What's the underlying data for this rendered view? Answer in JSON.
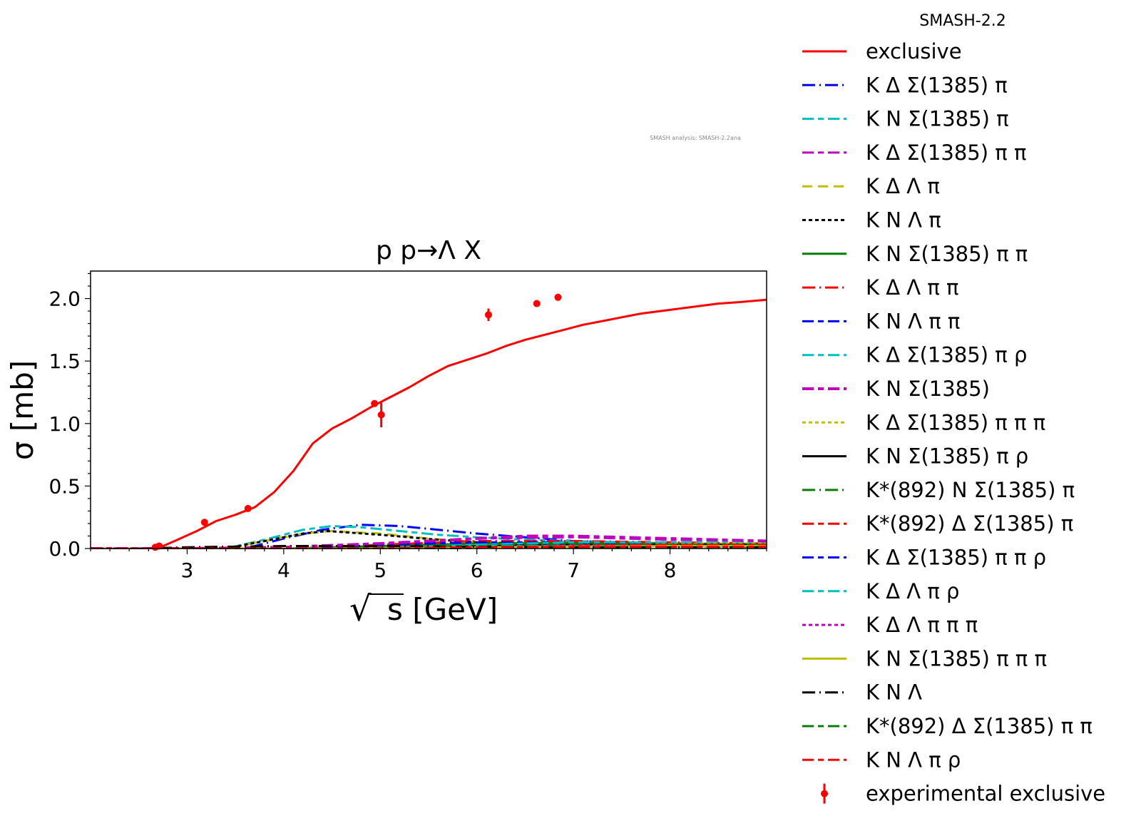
{
  "chart_data": {
    "type": "line",
    "title": "p p→Λ X",
    "xlabel": "s [GeV]",
    "xlabel_radical": "√",
    "ylabel": "σ [mb]",
    "xlim": [
      2.0,
      9.0
    ],
    "ylim": [
      0.0,
      2.22
    ],
    "xticks": [
      3,
      4,
      5,
      6,
      7,
      8
    ],
    "yticks": [
      0.0,
      0.5,
      1.0,
      1.5,
      2.0
    ],
    "ytick_labels": [
      "0.0",
      "0.5",
      "1.0",
      "1.5",
      "2.0"
    ],
    "grid": false,
    "legend_title": "SMASH-2.2",
    "legend_placement": "outside-right",
    "watermark": "SMASH analysis: SMASH-2.2ana",
    "series": [
      {
        "name": "exclusive",
        "color": "#ff0000",
        "style": "solid",
        "width": 3,
        "x": [
          2.0,
          2.6,
          2.75,
          2.9,
          3.1,
          3.3,
          3.5,
          3.7,
          3.9,
          4.1,
          4.3,
          4.5,
          4.7,
          4.9,
          5.1,
          5.3,
          5.5,
          5.7,
          5.9,
          6.1,
          6.3,
          6.5,
          6.7,
          6.9,
          7.1,
          7.3,
          7.5,
          7.7,
          7.9,
          8.1,
          8.3,
          8.5,
          8.7,
          9.0
        ],
        "y": [
          0.0,
          0.0,
          0.02,
          0.07,
          0.14,
          0.22,
          0.27,
          0.33,
          0.45,
          0.62,
          0.84,
          0.96,
          1.04,
          1.13,
          1.21,
          1.29,
          1.38,
          1.46,
          1.51,
          1.56,
          1.62,
          1.67,
          1.71,
          1.75,
          1.79,
          1.82,
          1.85,
          1.88,
          1.9,
          1.92,
          1.94,
          1.96,
          1.97,
          1.99
        ]
      },
      {
        "name": "K Δ Σ(1385) π",
        "color": "#0000ff",
        "style": "longdash-dot",
        "width": 3,
        "x": [
          2.0,
          3.6,
          4.0,
          4.4,
          4.8,
          5.2,
          5.6,
          6.0,
          6.5,
          7.0,
          8.0,
          9.0
        ],
        "y": [
          0.0,
          0.0,
          0.08,
          0.15,
          0.19,
          0.18,
          0.15,
          0.12,
          0.09,
          0.06,
          0.04,
          0.03
        ]
      },
      {
        "name": "K N Σ(1385) π",
        "color": "#00bfbf",
        "style": "longdash-dash",
        "width": 3,
        "x": [
          2.0,
          3.4,
          3.8,
          4.2,
          4.5,
          4.8,
          5.2,
          5.6,
          6.0,
          6.5,
          7.0,
          8.0,
          9.0
        ],
        "y": [
          0.0,
          0.0,
          0.07,
          0.15,
          0.18,
          0.17,
          0.14,
          0.11,
          0.09,
          0.07,
          0.06,
          0.04,
          0.03
        ]
      },
      {
        "name": "K Δ Σ(1385) π π",
        "color": "#bf00bf",
        "style": "longdash-dash",
        "width": 3,
        "x": [
          2.0,
          4.2,
          5.0,
          6.0,
          7.0,
          8.0,
          9.0
        ],
        "y": [
          0.0,
          0.0,
          0.04,
          0.08,
          0.09,
          0.07,
          0.06
        ]
      },
      {
        "name": "K Δ Λ π",
        "color": "#bfbf00",
        "style": "dash",
        "width": 3,
        "x": [
          2.0,
          3.4,
          3.8,
          4.2,
          4.5,
          5.0,
          5.5,
          6.0,
          7.0,
          8.0,
          9.0
        ],
        "y": [
          0.0,
          0.0,
          0.06,
          0.12,
          0.14,
          0.12,
          0.08,
          0.05,
          0.03,
          0.02,
          0.015
        ]
      },
      {
        "name": "K N Λ π",
        "color": "#000000",
        "style": "dotted",
        "width": 3,
        "x": [
          2.0,
          3.4,
          3.8,
          4.2,
          4.45,
          5.0,
          5.6,
          6.0,
          7.0,
          8.0,
          9.0
        ],
        "y": [
          0.0,
          0.0,
          0.06,
          0.12,
          0.14,
          0.11,
          0.07,
          0.05,
          0.03,
          0.02,
          0.015
        ]
      },
      {
        "name": "K N Σ(1385) π π",
        "color": "#008000",
        "style": "solid",
        "width": 3,
        "x": [
          2.0,
          4.0,
          5.0,
          6.0,
          7.0,
          8.0,
          9.0
        ],
        "y": [
          0.0,
          0.0,
          0.02,
          0.04,
          0.045,
          0.04,
          0.035
        ]
      },
      {
        "name": "K Δ Λ π π",
        "color": "#ff0000",
        "style": "longdash-dot",
        "width": 3,
        "x": [
          2.0,
          4.2,
          5.0,
          6.0,
          7.0,
          8.0,
          9.0
        ],
        "y": [
          0.0,
          0.0,
          0.03,
          0.06,
          0.06,
          0.05,
          0.04
        ]
      },
      {
        "name": "K N Λ π π",
        "color": "#0000ff",
        "style": "longdash-dash",
        "width": 3,
        "x": [
          2.0,
          4.0,
          5.0,
          6.0,
          7.0,
          8.0,
          9.0
        ],
        "y": [
          0.0,
          0.0,
          0.03,
          0.05,
          0.05,
          0.04,
          0.03
        ]
      },
      {
        "name": "K Δ Σ(1385) π ρ",
        "color": "#00bfbf",
        "style": "longdash-dash",
        "width": 3,
        "x": [
          2.0,
          5.0,
          6.0,
          7.0,
          8.0,
          9.0
        ],
        "y": [
          0.0,
          0.0,
          0.03,
          0.05,
          0.05,
          0.05
        ]
      },
      {
        "name": "K N Σ(1385)",
        "color": "#bf00bf",
        "style": "longdash-dash",
        "width": 4,
        "x": [
          2.0,
          3.0,
          4.0,
          5.0,
          6.0,
          6.5,
          7.0,
          8.0,
          9.0
        ],
        "y": [
          0.0,
          0.0,
          0.01,
          0.04,
          0.08,
          0.1,
          0.1,
          0.08,
          0.06
        ]
      },
      {
        "name": "K Δ Σ(1385) π π π",
        "color": "#bfbf00",
        "style": "dotted",
        "width": 3,
        "x": [
          2.0,
          5.5,
          6.5,
          7.5,
          8.5,
          9.0
        ],
        "y": [
          0.0,
          0.0,
          0.02,
          0.03,
          0.04,
          0.04
        ]
      },
      {
        "name": "K N Σ(1385) π ρ",
        "color": "#000000",
        "style": "solid",
        "width": 3,
        "x": [
          2.0,
          5.0,
          6.0,
          7.0,
          8.0,
          9.0
        ],
        "y": [
          0.0,
          0.0,
          0.02,
          0.03,
          0.03,
          0.03
        ]
      },
      {
        "name": "K*(892) N Σ(1385) π",
        "color": "#008000",
        "style": "longdash-dot",
        "width": 3,
        "x": [
          2.0,
          5.0,
          6.0,
          7.0,
          8.0,
          9.0
        ],
        "y": [
          0.0,
          0.0,
          0.02,
          0.03,
          0.03,
          0.03
        ]
      },
      {
        "name": "K*(892) Δ Σ(1385) π",
        "color": "#ff0000",
        "style": "longdash-dash",
        "width": 3,
        "x": [
          2.0,
          5.2,
          6.0,
          7.0,
          8.0,
          9.0
        ],
        "y": [
          0.0,
          0.0,
          0.015,
          0.025,
          0.03,
          0.03
        ]
      },
      {
        "name": "K Δ Σ(1385) π π ρ",
        "color": "#0000ff",
        "style": "longdash-dash",
        "width": 3,
        "x": [
          2.0,
          5.5,
          6.5,
          7.5,
          8.5,
          9.0
        ],
        "y": [
          0.0,
          0.0,
          0.01,
          0.02,
          0.02,
          0.02
        ]
      },
      {
        "name": "K Δ Λ π ρ",
        "color": "#00bfbf",
        "style": "longdash-dash",
        "width": 3,
        "x": [
          2.0,
          4.8,
          6.0,
          7.0,
          8.0,
          9.0
        ],
        "y": [
          0.0,
          0.0,
          0.02,
          0.02,
          0.02,
          0.02
        ]
      },
      {
        "name": "K Δ Λ π π π",
        "color": "#bf00bf",
        "style": "dotted",
        "width": 3,
        "x": [
          2.0,
          5.0,
          6.0,
          7.0,
          8.0,
          9.0
        ],
        "y": [
          0.0,
          0.0,
          0.01,
          0.02,
          0.02,
          0.02
        ]
      },
      {
        "name": "K N Σ(1385) π π π",
        "color": "#bfbf00",
        "style": "solid",
        "width": 3,
        "x": [
          2.0,
          5.0,
          6.0,
          7.0,
          8.0,
          9.0
        ],
        "y": [
          0.0,
          0.0,
          0.01,
          0.015,
          0.02,
          0.02
        ]
      },
      {
        "name": "K N Λ",
        "color": "#000000",
        "style": "longdash-dot",
        "width": 3,
        "x": [
          2.0,
          2.55,
          3.0,
          4.0,
          5.0,
          6.0,
          7.0,
          8.0,
          9.0
        ],
        "y": [
          0.0,
          0.0,
          0.01,
          0.02,
          0.02,
          0.015,
          0.01,
          0.01,
          0.01
        ]
      },
      {
        "name": "K*(892) Δ Σ(1385) π π",
        "color": "#008000",
        "style": "longdash-dash",
        "width": 3,
        "x": [
          2.0,
          5.5,
          6.5,
          7.5,
          8.5,
          9.0
        ],
        "y": [
          0.0,
          0.0,
          0.01,
          0.01,
          0.01,
          0.01
        ]
      },
      {
        "name": "K N Λ π ρ",
        "color": "#ff0000",
        "style": "longdash-dash",
        "width": 3,
        "x": [
          2.0,
          4.8,
          6.0,
          7.0,
          8.0,
          9.0
        ],
        "y": [
          0.0,
          0.0,
          0.01,
          0.015,
          0.015,
          0.015
        ]
      }
    ],
    "experimental": {
      "name": "experimental exclusive",
      "color": "#ff0000",
      "points": [
        {
          "x": 2.67,
          "y": 0.01,
          "err": 0.0
        },
        {
          "x": 2.71,
          "y": 0.02,
          "err": 0.0
        },
        {
          "x": 3.18,
          "y": 0.21,
          "err": 0.0
        },
        {
          "x": 3.63,
          "y": 0.32,
          "err": 0.0
        },
        {
          "x": 4.94,
          "y": 1.16,
          "err": 0.0
        },
        {
          "x": 5.01,
          "y": 1.07,
          "err": 0.1
        },
        {
          "x": 6.12,
          "y": 1.87,
          "err": 0.05
        },
        {
          "x": 6.62,
          "y": 1.96,
          "err": 0.02
        },
        {
          "x": 6.84,
          "y": 2.01,
          "err": 0.0
        }
      ]
    }
  }
}
